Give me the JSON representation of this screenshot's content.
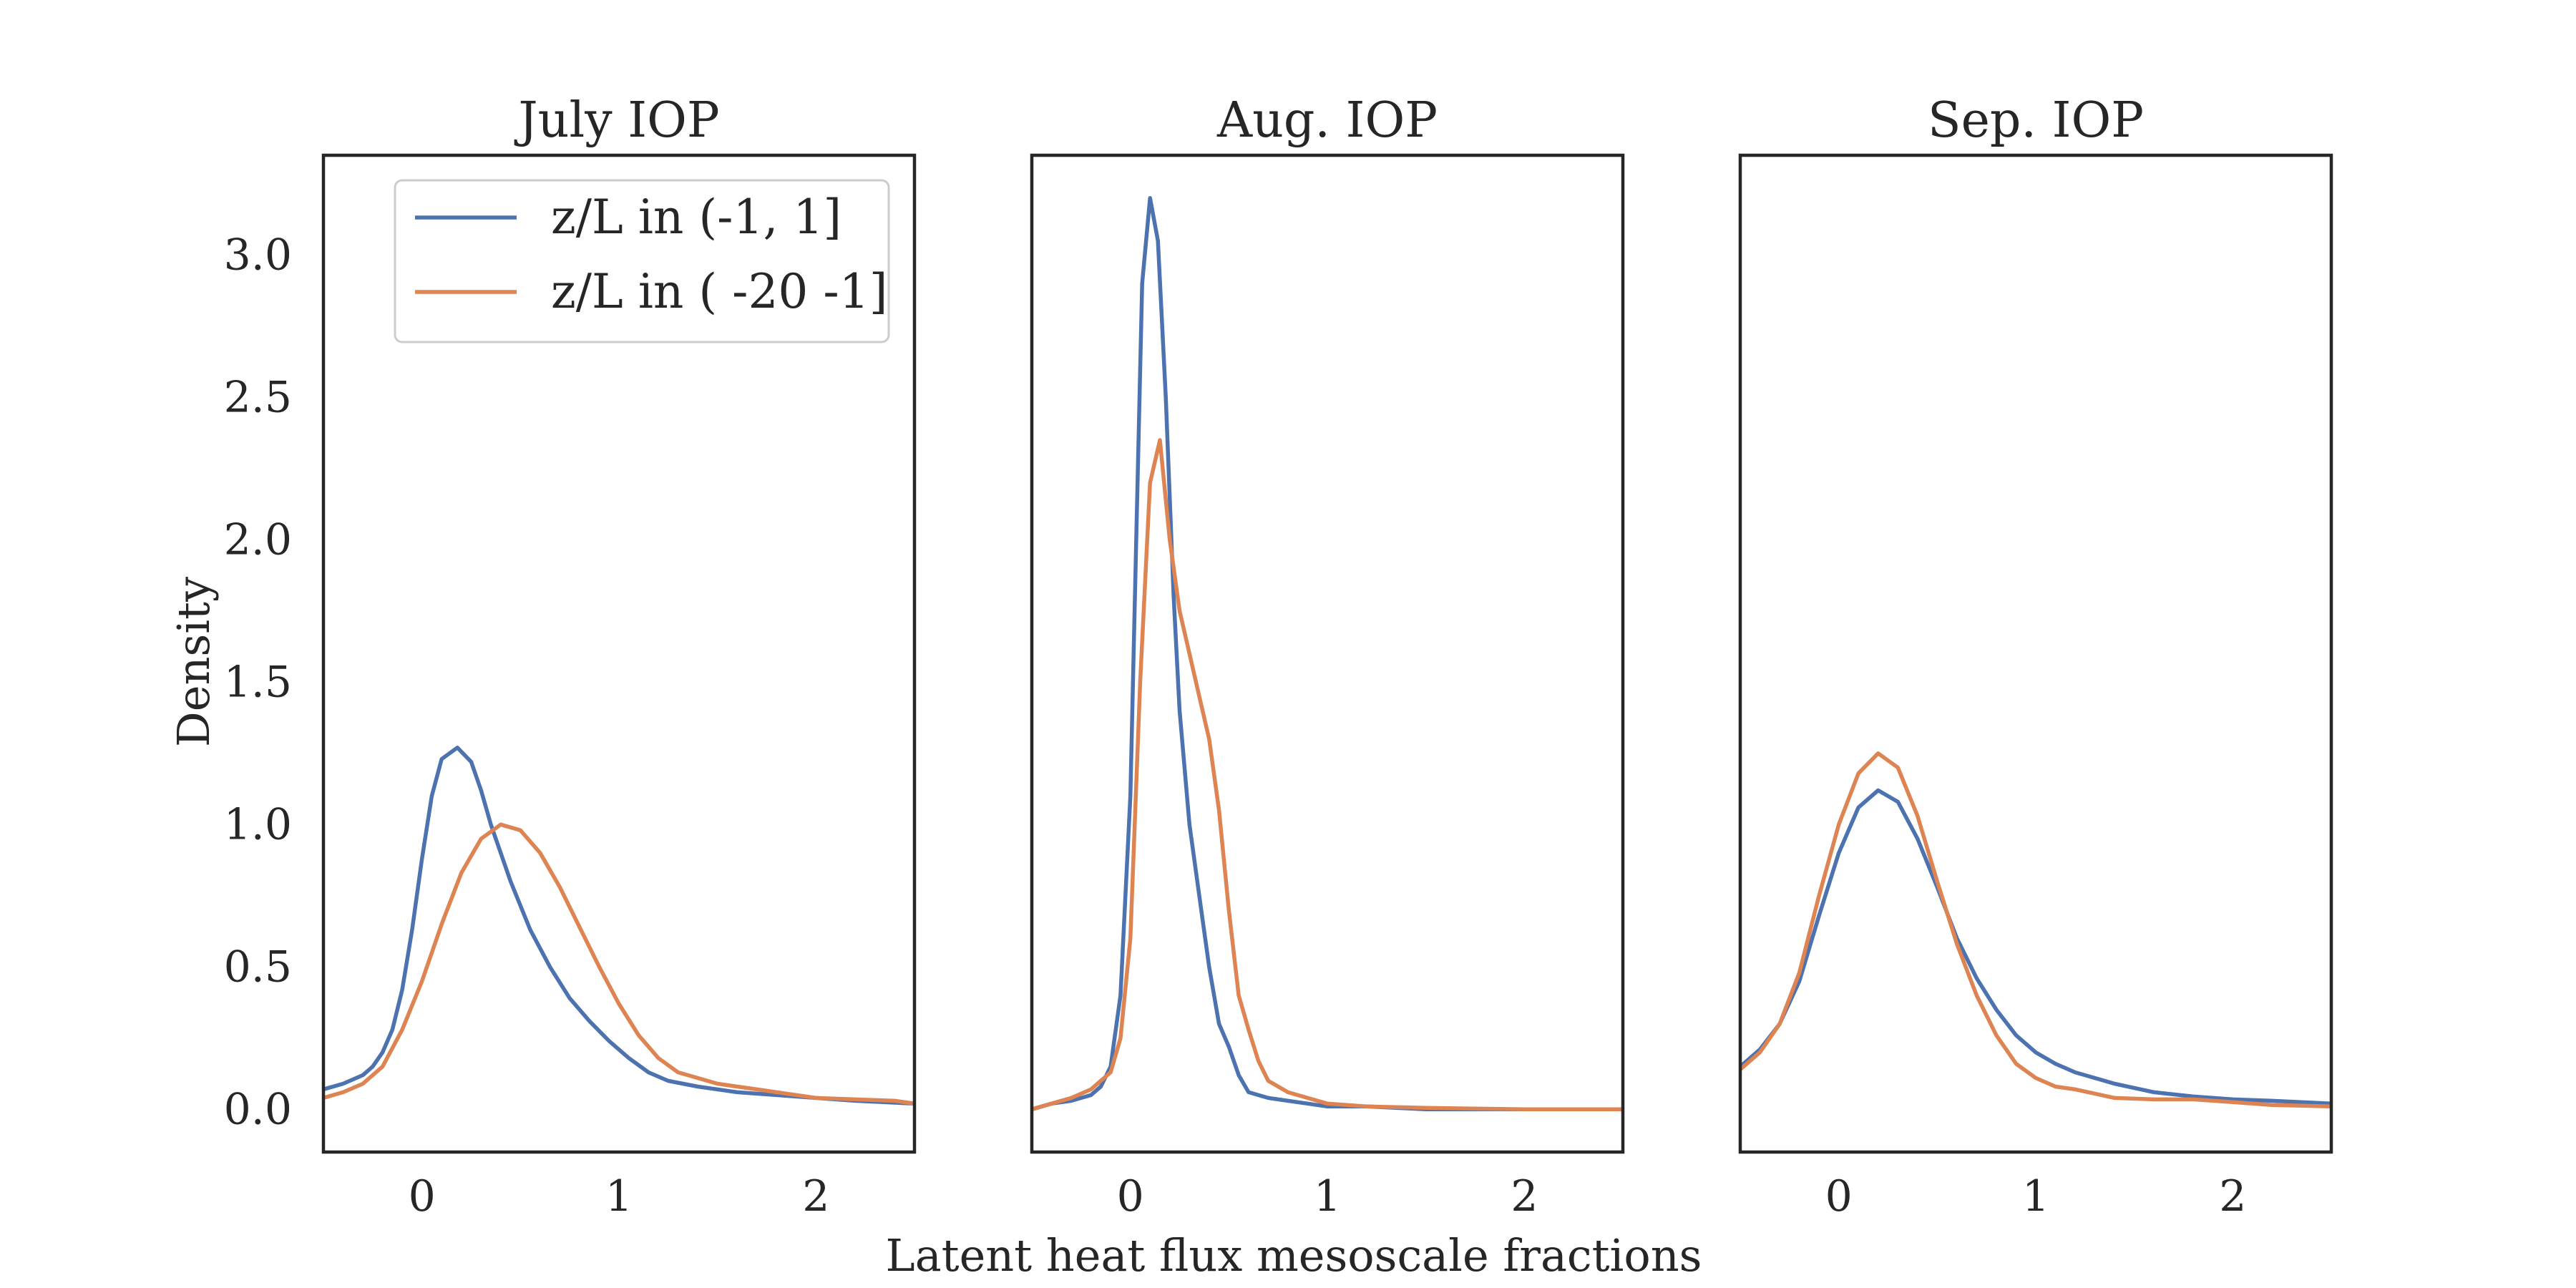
{
  "xlabel": "Latent heat flux mesoscale fractions",
  "ylabel": "Density",
  "legend": {
    "placement": "upper-right-of-first-panel",
    "entries": [
      {
        "label": "z/L in (-1, 1]",
        "color": "#4c72b0"
      },
      {
        "label": "z/L in ( -20 -1]",
        "color": "#dd8452"
      }
    ]
  },
  "colors": {
    "series1": "#4c72b0",
    "series2": "#dd8452",
    "axes": "#262626"
  },
  "chart_data": [
    {
      "type": "line",
      "title": "July IOP",
      "xlim": [
        -0.5,
        2.5
      ],
      "ylim": [
        -0.15,
        3.35
      ],
      "xticks": [
        "0",
        "1",
        "2"
      ],
      "yticks": [
        "0.0",
        "0.5",
        "1.0",
        "1.5",
        "2.0",
        "2.5",
        "3.0"
      ],
      "grid": false,
      "series": [
        {
          "name": "z/L in (-1, 1]",
          "color": "#4c72b0",
          "points": [
            [
              -0.5,
              0.07
            ],
            [
              -0.4,
              0.09
            ],
            [
              -0.3,
              0.12
            ],
            [
              -0.25,
              0.15
            ],
            [
              -0.2,
              0.2
            ],
            [
              -0.15,
              0.28
            ],
            [
              -0.1,
              0.42
            ],
            [
              -0.05,
              0.63
            ],
            [
              0.0,
              0.88
            ],
            [
              0.05,
              1.1
            ],
            [
              0.1,
              1.23
            ],
            [
              0.18,
              1.27
            ],
            [
              0.25,
              1.22
            ],
            [
              0.3,
              1.12
            ],
            [
              0.35,
              1.0
            ],
            [
              0.45,
              0.8
            ],
            [
              0.55,
              0.63
            ],
            [
              0.65,
              0.5
            ],
            [
              0.75,
              0.39
            ],
            [
              0.85,
              0.31
            ],
            [
              0.95,
              0.24
            ],
            [
              1.05,
              0.18
            ],
            [
              1.15,
              0.13
            ],
            [
              1.25,
              0.1
            ],
            [
              1.4,
              0.08
            ],
            [
              1.6,
              0.06
            ],
            [
              1.8,
              0.05
            ],
            [
              2.0,
              0.04
            ],
            [
              2.2,
              0.03
            ],
            [
              2.5,
              0.02
            ]
          ]
        },
        {
          "name": "z/L in ( -20 -1]",
          "color": "#dd8452",
          "points": [
            [
              -0.5,
              0.04
            ],
            [
              -0.4,
              0.06
            ],
            [
              -0.3,
              0.09
            ],
            [
              -0.2,
              0.15
            ],
            [
              -0.1,
              0.28
            ],
            [
              0.0,
              0.45
            ],
            [
              0.1,
              0.65
            ],
            [
              0.2,
              0.83
            ],
            [
              0.3,
              0.95
            ],
            [
              0.4,
              1.0
            ],
            [
              0.5,
              0.98
            ],
            [
              0.6,
              0.9
            ],
            [
              0.7,
              0.78
            ],
            [
              0.8,
              0.64
            ],
            [
              0.9,
              0.5
            ],
            [
              1.0,
              0.37
            ],
            [
              1.1,
              0.26
            ],
            [
              1.2,
              0.18
            ],
            [
              1.3,
              0.13
            ],
            [
              1.4,
              0.11
            ],
            [
              1.5,
              0.09
            ],
            [
              1.6,
              0.08
            ],
            [
              1.7,
              0.07
            ],
            [
              1.8,
              0.06
            ],
            [
              2.0,
              0.04
            ],
            [
              2.2,
              0.035
            ],
            [
              2.4,
              0.03
            ],
            [
              2.5,
              0.02
            ]
          ]
        }
      ]
    },
    {
      "type": "line",
      "title": "Aug. IOP",
      "xlim": [
        -0.5,
        2.5
      ],
      "ylim": [
        -0.15,
        3.35
      ],
      "xticks": [
        "0",
        "1",
        "2"
      ],
      "yticks": [],
      "grid": false,
      "series": [
        {
          "name": "z/L in (-1, 1]",
          "color": "#4c72b0",
          "points": [
            [
              -0.5,
              0.0
            ],
            [
              -0.4,
              0.02
            ],
            [
              -0.3,
              0.03
            ],
            [
              -0.2,
              0.05
            ],
            [
              -0.15,
              0.08
            ],
            [
              -0.1,
              0.15
            ],
            [
              -0.05,
              0.4
            ],
            [
              0.0,
              1.1
            ],
            [
              0.03,
              2.0
            ],
            [
              0.06,
              2.9
            ],
            [
              0.1,
              3.2
            ],
            [
              0.14,
              3.05
            ],
            [
              0.18,
              2.5
            ],
            [
              0.22,
              1.8
            ],
            [
              0.25,
              1.4
            ],
            [
              0.3,
              1.0
            ],
            [
              0.35,
              0.75
            ],
            [
              0.4,
              0.5
            ],
            [
              0.45,
              0.3
            ],
            [
              0.5,
              0.22
            ],
            [
              0.55,
              0.12
            ],
            [
              0.6,
              0.06
            ],
            [
              0.7,
              0.04
            ],
            [
              0.8,
              0.03
            ],
            [
              0.9,
              0.02
            ],
            [
              1.0,
              0.01
            ],
            [
              1.2,
              0.01
            ],
            [
              1.5,
              0.0
            ],
            [
              2.0,
              0.0
            ],
            [
              2.5,
              0.0
            ]
          ]
        },
        {
          "name": "z/L in ( -20 -1]",
          "color": "#dd8452",
          "points": [
            [
              -0.5,
              0.0
            ],
            [
              -0.4,
              0.02
            ],
            [
              -0.3,
              0.04
            ],
            [
              -0.2,
              0.07
            ],
            [
              -0.1,
              0.13
            ],
            [
              -0.05,
              0.25
            ],
            [
              0.0,
              0.6
            ],
            [
              0.05,
              1.5
            ],
            [
              0.1,
              2.2
            ],
            [
              0.15,
              2.35
            ],
            [
              0.2,
              2.0
            ],
            [
              0.25,
              1.75
            ],
            [
              0.3,
              1.6
            ],
            [
              0.35,
              1.45
            ],
            [
              0.4,
              1.3
            ],
            [
              0.45,
              1.05
            ],
            [
              0.5,
              0.7
            ],
            [
              0.55,
              0.4
            ],
            [
              0.6,
              0.28
            ],
            [
              0.65,
              0.17
            ],
            [
              0.7,
              0.1
            ],
            [
              0.8,
              0.06
            ],
            [
              0.9,
              0.04
            ],
            [
              1.0,
              0.02
            ],
            [
              1.2,
              0.01
            ],
            [
              1.5,
              0.005
            ],
            [
              2.0,
              0.0
            ],
            [
              2.5,
              0.0
            ]
          ]
        }
      ]
    },
    {
      "type": "line",
      "title": "Sep. IOP",
      "xlim": [
        -0.5,
        2.5
      ],
      "ylim": [
        -0.15,
        3.35
      ],
      "xticks": [
        "0",
        "1",
        "2"
      ],
      "yticks": [],
      "grid": false,
      "series": [
        {
          "name": "z/L in (-1, 1]",
          "color": "#4c72b0",
          "points": [
            [
              -0.5,
              0.15
            ],
            [
              -0.4,
              0.21
            ],
            [
              -0.3,
              0.3
            ],
            [
              -0.2,
              0.45
            ],
            [
              -0.1,
              0.68
            ],
            [
              0.0,
              0.9
            ],
            [
              0.1,
              1.06
            ],
            [
              0.2,
              1.12
            ],
            [
              0.3,
              1.08
            ],
            [
              0.4,
              0.95
            ],
            [
              0.5,
              0.78
            ],
            [
              0.6,
              0.6
            ],
            [
              0.7,
              0.46
            ],
            [
              0.8,
              0.35
            ],
            [
              0.9,
              0.26
            ],
            [
              1.0,
              0.2
            ],
            [
              1.1,
              0.16
            ],
            [
              1.2,
              0.13
            ],
            [
              1.4,
              0.09
            ],
            [
              1.6,
              0.06
            ],
            [
              1.8,
              0.045
            ],
            [
              2.0,
              0.035
            ],
            [
              2.2,
              0.03
            ],
            [
              2.5,
              0.02
            ]
          ]
        },
        {
          "name": "z/L in ( -20 -1]",
          "color": "#dd8452",
          "points": [
            [
              -0.5,
              0.14
            ],
            [
              -0.4,
              0.2
            ],
            [
              -0.3,
              0.3
            ],
            [
              -0.2,
              0.48
            ],
            [
              -0.1,
              0.75
            ],
            [
              0.0,
              1.0
            ],
            [
              0.1,
              1.18
            ],
            [
              0.2,
              1.25
            ],
            [
              0.3,
              1.2
            ],
            [
              0.4,
              1.03
            ],
            [
              0.5,
              0.8
            ],
            [
              0.6,
              0.58
            ],
            [
              0.7,
              0.4
            ],
            [
              0.8,
              0.26
            ],
            [
              0.9,
              0.16
            ],
            [
              1.0,
              0.11
            ],
            [
              1.1,
              0.08
            ],
            [
              1.2,
              0.07
            ],
            [
              1.4,
              0.04
            ],
            [
              1.6,
              0.035
            ],
            [
              1.8,
              0.035
            ],
            [
              2.0,
              0.025
            ],
            [
              2.2,
              0.015
            ],
            [
              2.5,
              0.01
            ]
          ]
        }
      ]
    }
  ]
}
